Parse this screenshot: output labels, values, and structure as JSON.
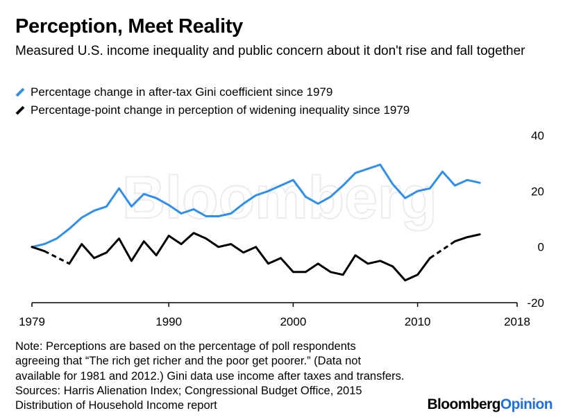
{
  "title": "Perception, Meet Reality",
  "subtitle": "Measured U.S. income inequality and public concern about it don't rise and fall together",
  "watermark": "Bloomberg",
  "note_lines": [
    "Note: Perceptions are based on the percentage of poll respondents",
    "agreeing that “The rich get richer and the poor get poorer.” (Data not",
    "available for 1981 and 2012.) Gini data use income after taxes and transfers.",
    "Sources: Harris Alienation Index; Congressional Budget Office, 2015",
    "Distribution of Household Income report"
  ],
  "brand": {
    "part1": "Bloomberg",
    "part2": "Opinion",
    "accent": "#1f6fe0"
  },
  "chart_data": {
    "type": "line",
    "title": "Perception, Meet Reality",
    "subtitle": "Measured U.S. income inequality and public concern about it don't rise and fall together",
    "xlabel": "",
    "ylabel": "",
    "xlim": [
      1979,
      2018
    ],
    "ylim": [
      -20,
      40
    ],
    "x_ticks": [
      1979,
      1990,
      2000,
      2010,
      2018
    ],
    "y_ticks": [
      40,
      20,
      0,
      -20
    ],
    "y_axis_side": "right",
    "grid": false,
    "legend_placement": "top-left",
    "series": [
      {
        "name": "Percentage change in after-tax Gini coefficient since 1979",
        "color": "#2d8fee",
        "x": [
          1979,
          1980,
          1981,
          1982,
          1983,
          1984,
          1985,
          1986,
          1987,
          1988,
          1989,
          1990,
          1991,
          1992,
          1993,
          1994,
          1995,
          1996,
          1997,
          1998,
          1999,
          2000,
          2001,
          2002,
          2003,
          2004,
          2005,
          2006,
          2007,
          2008,
          2009,
          2010,
          2011,
          2012,
          2013,
          2014,
          2015
        ],
        "y": [
          0,
          1,
          3,
          6.5,
          10.5,
          13,
          14.5,
          21,
          14.5,
          19,
          17.5,
          15,
          12,
          13.5,
          11,
          11,
          12,
          15.5,
          18.5,
          20,
          22,
          24,
          18,
          15.5,
          18,
          22,
          26.5,
          28,
          29.5,
          22.5,
          17.5,
          20,
          21,
          27,
          22,
          24,
          23
        ]
      },
      {
        "name": "Percentage-point change in perception of widening inequality since 1979",
        "color": "#000000",
        "x": [
          1979,
          1980,
          1981,
          1982,
          1983,
          1984,
          1985,
          1986,
          1987,
          1988,
          1989,
          1990,
          1991,
          1992,
          1993,
          1994,
          1995,
          1996,
          1997,
          1998,
          1999,
          2000,
          2001,
          2002,
          2003,
          2004,
          2005,
          2006,
          2007,
          2008,
          2009,
          2010,
          2011,
          2012,
          2013,
          2014,
          2015
        ],
        "y": [
          0,
          -1.5,
          null,
          -6,
          1,
          -4,
          -2,
          3,
          -5,
          2,
          -3,
          4,
          1,
          5,
          3,
          0,
          1,
          -2,
          0,
          -6,
          -4,
          -9,
          -9,
          -6,
          -9,
          -10,
          -3,
          -6,
          -5,
          -7,
          -12,
          -10,
          -4,
          null,
          2,
          3.5,
          4.5
        ]
      }
    ],
    "dashed_segments_note": "Gaps where data are unavailable (1981, 2012) are bridged with dashed lines"
  }
}
